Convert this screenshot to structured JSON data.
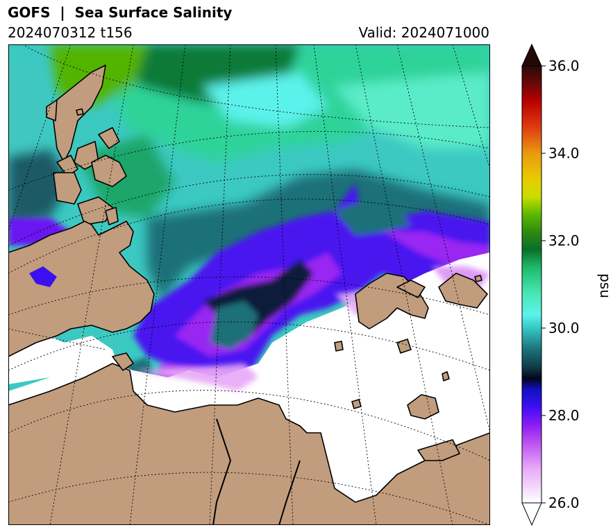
{
  "header": {
    "title": "GOFS  |  Sea Surface Salinity",
    "run": "2024070312 t156",
    "valid": "Valid: 2024071000"
  },
  "colorbar": {
    "unit": "psu",
    "min": 26.0,
    "max": 36.0,
    "ticks": [
      "26.0",
      "28.0",
      "30.0",
      "32.0",
      "34.0",
      "36.0"
    ],
    "stops": [
      {
        "v": 26.0,
        "color": "#ffffff"
      },
      {
        "v": 26.8,
        "color": "#e6a8f7"
      },
      {
        "v": 27.4,
        "color": "#b84ef0"
      },
      {
        "v": 27.8,
        "color": "#8a1af5"
      },
      {
        "v": 28.2,
        "color": "#3b10f2"
      },
      {
        "v": 28.6,
        "color": "#1010c0"
      },
      {
        "v": 28.85,
        "color": "#050518"
      },
      {
        "v": 29.1,
        "color": "#103a4a"
      },
      {
        "v": 29.5,
        "color": "#1c6f78"
      },
      {
        "v": 30.0,
        "color": "#35c7c4"
      },
      {
        "v": 30.3,
        "color": "#5cf2ec"
      },
      {
        "v": 30.8,
        "color": "#48e6b4"
      },
      {
        "v": 31.4,
        "color": "#1fb868"
      },
      {
        "v": 31.8,
        "color": "#0a6e2a"
      },
      {
        "v": 32.2,
        "color": "#2f8a10"
      },
      {
        "v": 32.6,
        "color": "#5cb800"
      },
      {
        "v": 33.0,
        "color": "#c8dd00"
      },
      {
        "v": 33.4,
        "color": "#e8cc00"
      },
      {
        "v": 34.0,
        "color": "#e89a10"
      },
      {
        "v": 34.6,
        "color": "#e03a10"
      },
      {
        "v": 35.2,
        "color": "#b80000"
      },
      {
        "v": 35.6,
        "color": "#6a0808"
      },
      {
        "v": 36.0,
        "color": "#2a0a0a"
      }
    ],
    "over_color": "#240808",
    "under_color": "#ffffff"
  },
  "map": {
    "land_color": "#c19d7e",
    "ice_color": "#ffffff",
    "graticule": "dotted"
  }
}
